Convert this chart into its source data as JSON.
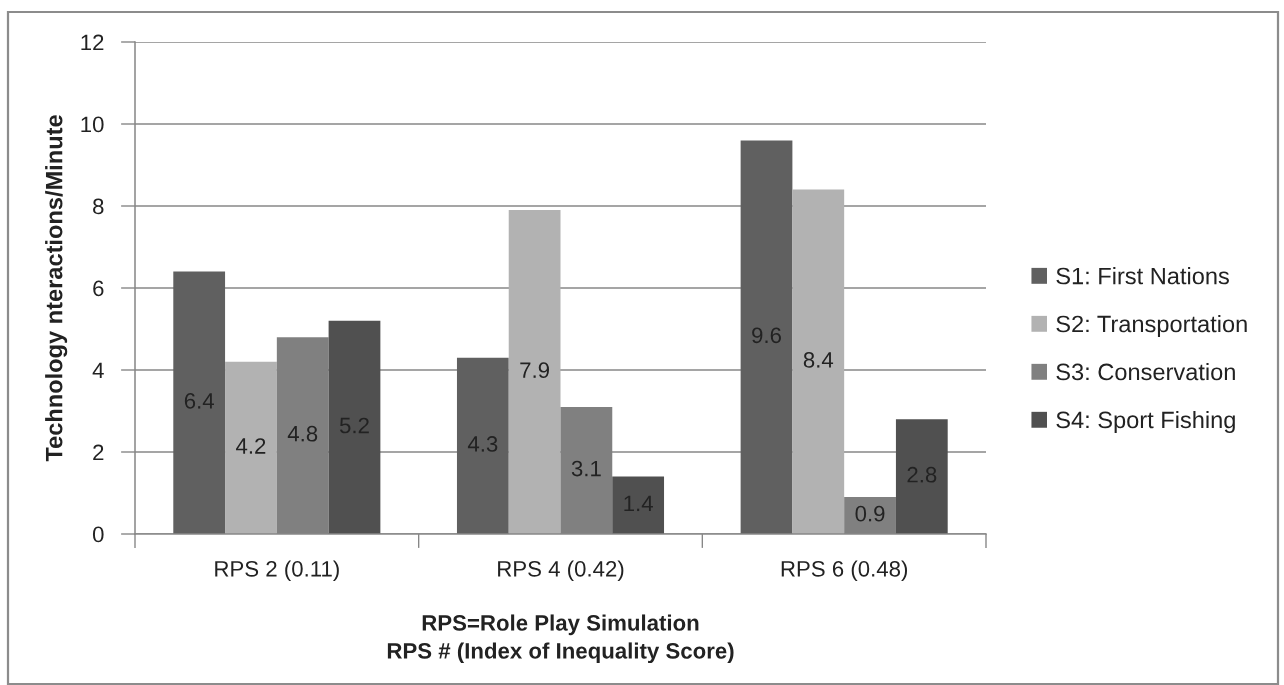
{
  "chart_data": {
    "type": "bar",
    "xlabel": "RPS=Role Play Simulation\nRPS # (Index of Inequality Score)",
    "ylabel": "Technology nteractions/Minute",
    "categories": [
      "RPS 2 (0.11)",
      "RPS 4 (0.42)",
      "RPS 6 (0.48)"
    ],
    "series": [
      {
        "name": "S1: First Nations",
        "color": "#606060",
        "values": [
          6.4,
          4.3,
          9.6
        ]
      },
      {
        "name": "S2: Transportation",
        "color": "#b2b2b2",
        "values": [
          4.2,
          7.9,
          8.4
        ]
      },
      {
        "name": "S3: Conservation",
        "color": "#808080",
        "values": [
          4.8,
          3.1,
          0.9
        ]
      },
      {
        "name": "S4: Sport Fishing",
        "color": "#505050",
        "values": [
          5.2,
          1.4,
          2.8
        ]
      }
    ],
    "ylim": [
      0,
      12
    ],
    "yticks": [
      0,
      2,
      4,
      6,
      8,
      10,
      12
    ],
    "grid": "y",
    "legend": "right",
    "data_labels": true
  }
}
